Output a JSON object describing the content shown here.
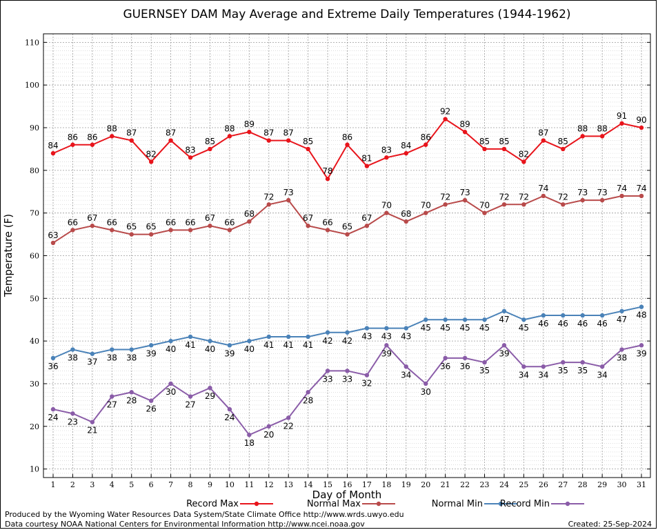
{
  "chart_data": {
    "type": "line",
    "title": "GUERNSEY DAM May Average and Extreme Daily Temperatures (1944-1962)",
    "xlabel": "Day of Month",
    "ylabel": "Temperature (F)",
    "ylim": [
      8,
      112
    ],
    "yticks": [
      10,
      20,
      30,
      40,
      50,
      60,
      70,
      80,
      90,
      100,
      110
    ],
    "grid": true,
    "legend_position": "bottom",
    "x": [
      1,
      2,
      3,
      4,
      5,
      6,
      7,
      8,
      9,
      10,
      11,
      12,
      13,
      14,
      15,
      16,
      17,
      18,
      19,
      20,
      21,
      22,
      23,
      24,
      25,
      26,
      27,
      28,
      29,
      30,
      31
    ],
    "series": [
      {
        "name": "Record Max",
        "color": "#e8141b",
        "label_position": "above",
        "values": [
          84,
          86,
          86,
          88,
          87,
          82,
          87,
          83,
          85,
          88,
          89,
          87,
          87,
          85,
          78,
          86,
          81,
          83,
          84,
          86,
          92,
          89,
          85,
          85,
          82,
          87,
          85,
          88,
          88,
          91,
          90
        ]
      },
      {
        "name": "Normal Max",
        "color": "#b84a4a",
        "label_position": "above",
        "values": [
          63,
          66,
          67,
          66,
          65,
          65,
          66,
          66,
          67,
          66,
          68,
          72,
          73,
          67,
          66,
          65,
          67,
          70,
          68,
          70,
          72,
          73,
          70,
          72,
          72,
          74,
          72,
          73,
          73,
          74,
          74
        ]
      },
      {
        "name": "Normal Min",
        "color": "#4a82b8",
        "label_position": "below",
        "values": [
          36,
          38,
          37,
          38,
          38,
          39,
          40,
          41,
          40,
          39,
          40,
          41,
          41,
          41,
          42,
          42,
          43,
          43,
          43,
          45,
          45,
          45,
          45,
          47,
          45,
          46,
          46,
          46,
          46,
          47,
          48
        ]
      },
      {
        "name": "Record Min",
        "color": "#8a5ca8",
        "label_position": "below",
        "values": [
          24,
          23,
          21,
          27,
          28,
          26,
          30,
          27,
          29,
          24,
          18,
          20,
          22,
          28,
          33,
          33,
          32,
          39,
          34,
          30,
          36,
          36,
          35,
          39,
          34,
          34,
          35,
          35,
          34,
          38,
          39
        ]
      }
    ]
  },
  "footer": {
    "produced_by": "Produced by the Wyoming Water Resources Data System/State Climate Office http://www.wrds.uwyo.edu",
    "courtesy": "Data courtesy NOAA National Centers for Environmental Information http://www.ncei.noaa.gov",
    "created": "Created:  25-Sep-2024"
  }
}
